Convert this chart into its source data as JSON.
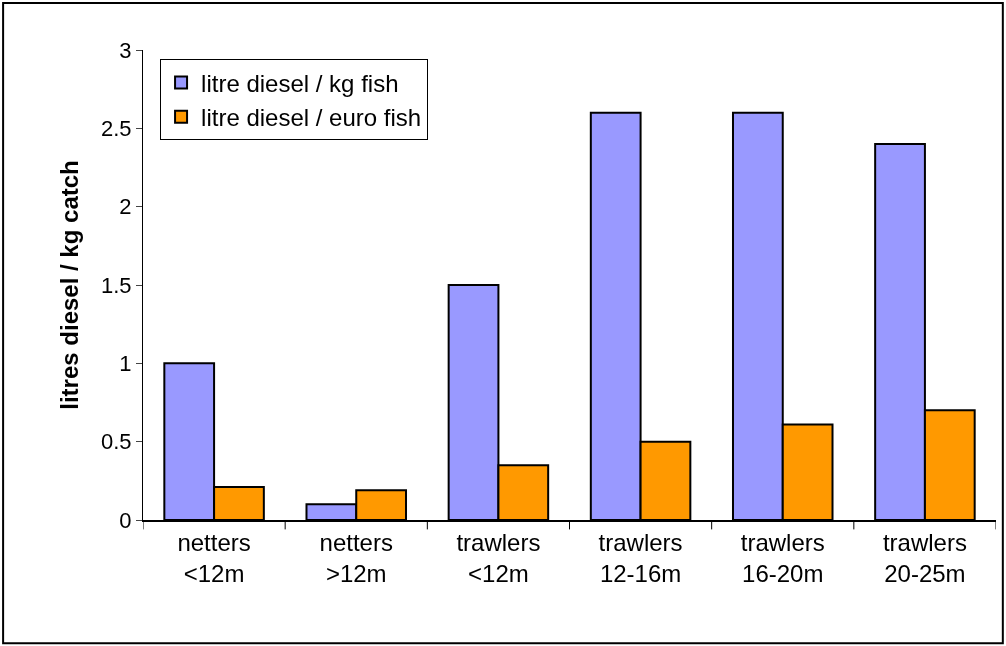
{
  "chart_data": {
    "type": "bar",
    "ylabel": "litres diesel / kg catch",
    "categories": [
      "netters\n<12m",
      "netters\n>12m",
      "trawlers\n<12m",
      "trawlers\n12-16m",
      "trawlers\n16-20m",
      "trawlers\n20-25m"
    ],
    "series": [
      {
        "name": "litre diesel / kg fish",
        "color": "#9999ff",
        "values": [
          1.0,
          0.1,
          1.5,
          2.6,
          2.6,
          2.4
        ]
      },
      {
        "name": "litre diesel / euro fish",
        "color": "#ff9900",
        "values": [
          0.21,
          0.19,
          0.35,
          0.5,
          0.61,
          0.7
        ]
      }
    ],
    "ylim": [
      0,
      3
    ],
    "yticks": [
      0,
      0.5,
      1,
      1.5,
      2,
      2.5,
      3
    ],
    "legend": "top left"
  }
}
